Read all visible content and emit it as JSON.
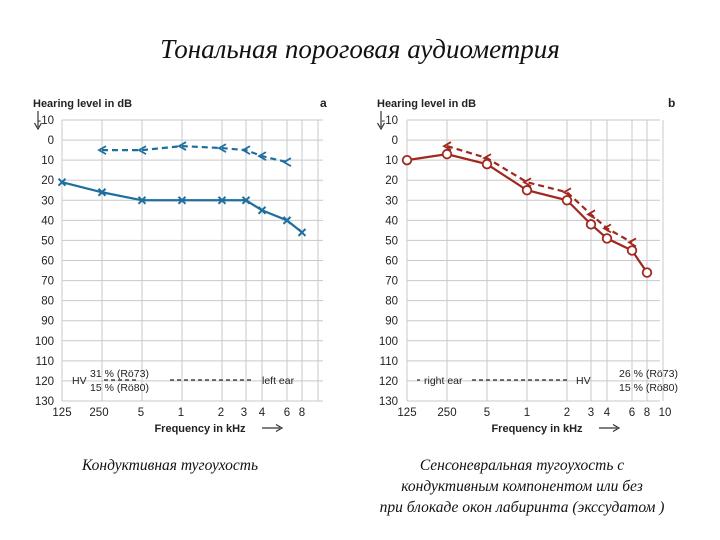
{
  "slide": {
    "title": "Тональная пороговая аудиометрия",
    "captions": {
      "left": [
        "Кондуктивная тугоухость"
      ],
      "right": [
        "Сенсоневральная тугоухость с",
        "кондуктивным компонентом или без",
        "при блокаде окон лабиринта (экссудатом )"
      ]
    }
  },
  "colors": {
    "left_series": "#1f6f9e",
    "right_series": "#a0281f",
    "grid": "#c9c9c9",
    "text": "#222222"
  },
  "chart_data": [
    {
      "type": "line",
      "panel_label": "a",
      "ylabel": "Hearing level in dB",
      "xlabel": "Frequency in kHz",
      "x_ticks": [
        "125",
        "250",
        "5",
        "1",
        "2",
        "3",
        "4",
        "6",
        "8"
      ],
      "y_ticks": [
        -10,
        0,
        10,
        20,
        30,
        40,
        50,
        60,
        70,
        80,
        90,
        100,
        110,
        120,
        130
      ],
      "ylim": [
        -10,
        130
      ],
      "y_inverted": true,
      "grid": true,
      "annotations": {
        "hv": "HV",
        "pct1": "31 % (Rö73)",
        "pct2": "15 % (Rö80)",
        "ear": "left ear"
      },
      "series": [
        {
          "type": "bone",
          "marker": "arrow",
          "dashed": true,
          "x": [
            "250",
            "5",
            "1",
            "2",
            "3",
            "4",
            "6"
          ],
          "values": [
            5,
            5,
            3,
            4,
            5,
            8,
            11
          ]
        },
        {
          "type": "air",
          "marker": "x",
          "dashed": false,
          "x": [
            "125",
            "250",
            "5",
            "1",
            "2",
            "3",
            "4",
            "6",
            "8"
          ],
          "values": [
            21,
            26,
            30,
            30,
            30,
            30,
            35,
            40,
            46
          ]
        }
      ]
    },
    {
      "type": "line",
      "panel_label": "b",
      "ylabel": "Hearing level in dB",
      "xlabel": "Frequency in kHz",
      "x_ticks": [
        "125",
        "250",
        "5",
        "1",
        "2",
        "3",
        "4",
        "6",
        "8",
        "10"
      ],
      "y_ticks": [
        -10,
        0,
        10,
        20,
        30,
        40,
        50,
        60,
        70,
        80,
        90,
        100,
        110,
        120,
        130
      ],
      "ylim": [
        -10,
        130
      ],
      "y_inverted": true,
      "grid": true,
      "annotations": {
        "hv": "HV",
        "pct1": "26 % (Rö73)",
        "pct2": "15 % (Rö80)",
        "ear": "right ear"
      },
      "series": [
        {
          "type": "bone",
          "marker": "arrow",
          "dashed": true,
          "x": [
            "250",
            "5",
            "1",
            "2",
            "3",
            "4",
            "6"
          ],
          "values": [
            3,
            9,
            21,
            26,
            37,
            44,
            51
          ]
        },
        {
          "type": "air",
          "marker": "circle",
          "dashed": false,
          "x": [
            "125",
            "250",
            "5",
            "1",
            "2",
            "3",
            "4",
            "6",
            "8"
          ],
          "values": [
            10,
            7,
            12,
            25,
            30,
            42,
            49,
            55,
            66
          ]
        }
      ]
    }
  ]
}
